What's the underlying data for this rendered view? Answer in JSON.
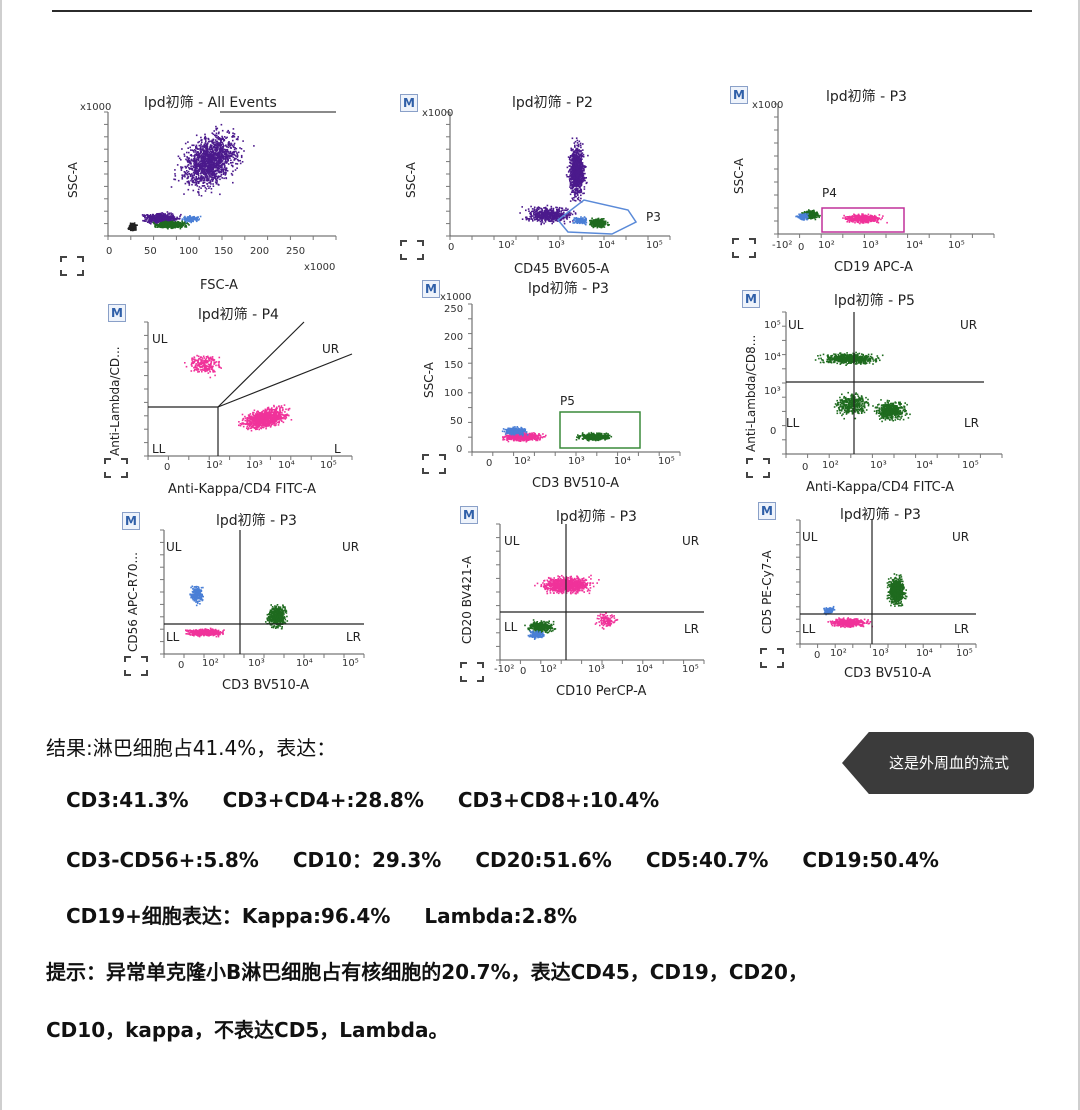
{
  "plots": [
    {
      "id": "p1",
      "title": "lpd初筛 - All Events",
      "xlabel": "FSC-A",
      "ylabel": "SSC-A",
      "xunit": "x1000",
      "yunit": "x1000",
      "badge": "",
      "xticks": [
        "0",
        "50",
        "100",
        "150",
        "200",
        "250"
      ],
      "yticks": [],
      "quadrants": [],
      "gates": []
    },
    {
      "id": "p2",
      "title": "lpd初筛 - P2",
      "xlabel": "CD45 BV605-A",
      "ylabel": "SSC-A",
      "xunit": "",
      "yunit": "x1000",
      "badge": "M",
      "xticks": [
        "0",
        "10²",
        "10³",
        "10⁴",
        "10⁵"
      ],
      "yticks": [],
      "quadrants": [],
      "gates": [
        "P3"
      ]
    },
    {
      "id": "p3",
      "title": "lpd初筛 - P3",
      "xlabel": "CD19 APC-A",
      "ylabel": "SSC-A",
      "xunit": "",
      "yunit": "x1000",
      "badge": "M",
      "xticks": [
        "-10²",
        "0",
        "10²",
        "10³",
        "10⁴",
        "10⁵"
      ],
      "yticks": [],
      "quadrants": [],
      "gates": [
        "P4"
      ]
    },
    {
      "id": "p4",
      "title": "lpd初筛 - P4",
      "xlabel": "Anti-Kappa/CD4 FITC-A",
      "ylabel": "Anti-Lambda/CD...",
      "xunit": "",
      "yunit": "",
      "badge": "M",
      "xticks": [
        "0",
        "10²",
        "10³",
        "10⁴",
        "10⁵"
      ],
      "yticks": [],
      "quadrants": [
        "UL",
        "UR",
        "LL",
        "L"
      ],
      "gates": []
    },
    {
      "id": "p5",
      "title": "lpd初筛 - P3",
      "xlabel": "CD3 BV510-A",
      "ylabel": "SSC-A",
      "xunit": "",
      "yunit": "x1000",
      "badge": "M",
      "xticks": [
        "0",
        "10²",
        "10³",
        "10⁴",
        "10⁵"
      ],
      "yticks": [
        "250",
        "200",
        "150",
        "100",
        "50",
        "0"
      ],
      "quadrants": [],
      "gates": [
        "P5"
      ]
    },
    {
      "id": "p6",
      "title": "lpd初筛 - P5",
      "xlabel": "Anti-Kappa/CD4 FITC-A",
      "ylabel": "Anti-Lambda/CD8...",
      "xunit": "",
      "yunit": "",
      "badge": "M",
      "xticks": [
        "0",
        "10²",
        "10³",
        "10⁴",
        "10⁵"
      ],
      "yticks": [
        "10⁵",
        "10⁴",
        "10³",
        "0"
      ],
      "quadrants": [
        "UL",
        "UR",
        "LL",
        "LR"
      ],
      "gates": []
    },
    {
      "id": "p7",
      "title": "lpd初筛 - P3",
      "xlabel": "CD3 BV510-A",
      "ylabel": "CD56 APC-R70...",
      "xunit": "",
      "yunit": "",
      "badge": "M",
      "xticks": [
        "0",
        "10²",
        "10³",
        "10⁴",
        "10⁵"
      ],
      "yticks": [],
      "quadrants": [
        "UL",
        "UR",
        "LL",
        "LR"
      ],
      "gates": []
    },
    {
      "id": "p8",
      "title": "lpd初筛 - P3",
      "xlabel": "CD10 PerCP-A",
      "ylabel": "CD20 BV421-A",
      "xunit": "",
      "yunit": "",
      "badge": "M",
      "xticks": [
        "-10²",
        "0",
        "10²",
        "10³",
        "10⁴",
        "10⁵"
      ],
      "yticks": [],
      "quadrants": [
        "UL",
        "UR",
        "LL",
        "LR"
      ],
      "gates": []
    },
    {
      "id": "p9",
      "title": "lpd初筛 - P3",
      "xlabel": "CD3 BV510-A",
      "ylabel": "CD5 PE-Cy7-A",
      "xunit": "",
      "yunit": "",
      "badge": "M",
      "xticks": [
        "0",
        "10²",
        "10³",
        "10⁴",
        "10⁵"
      ],
      "yticks": [],
      "quadrants": [
        "UL",
        "UR",
        "LL",
        "LR"
      ],
      "gates": []
    }
  ],
  "colors": {
    "purple": "#4b1a8c",
    "green": "#1f6b1f",
    "pink": "#f0329a",
    "blue": "#4a7fd6",
    "gate_green": "#3a8a3a",
    "gate_magenta": "#c0309a",
    "gate_blue": "#5a8ad8"
  },
  "results": {
    "line1": "结果:淋巴细胞占41.4%，表达：",
    "line2": [
      "CD3:41.3%",
      "CD3+CD4+:28.8%",
      "CD3+CD8+:10.4%"
    ],
    "line3": [
      "CD3-CD56+:5.8%",
      "CD10：29.3%",
      "CD20:51.6%",
      "CD5:40.7%",
      "CD19:50.4%"
    ],
    "line4": [
      "CD19+细胞表达：Kappa:96.4%",
      "Lambda:2.8%"
    ],
    "line5": "提示：异常单克隆小B淋巴细胞占有核细胞的20.7%，表达CD45，CD19，CD20，",
    "line6": "CD10，kappa，不表达CD5，Lambda。"
  },
  "tooltip": {
    "text": "这是外周血的流式"
  }
}
